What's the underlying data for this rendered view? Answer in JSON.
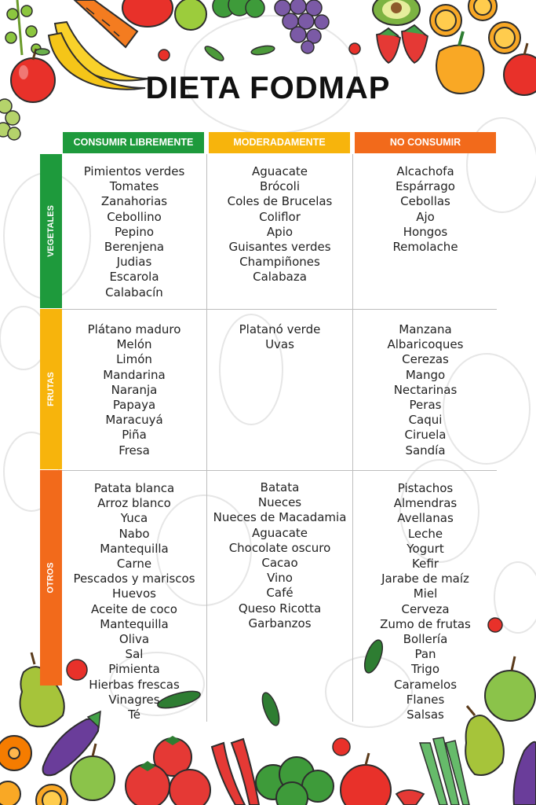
{
  "title": "DIETA FODMAP",
  "colors": {
    "green": "#1e9a3c",
    "yellow": "#f7b40c",
    "orange": "#f26a1b"
  },
  "columns": [
    {
      "label": "CONSUMIR LIBREMENTE",
      "color": "#1e9a3c"
    },
    {
      "label": "MODERADAMENTE",
      "color": "#f7b40c"
    },
    {
      "label": "NO CONSUMIR",
      "color": "#f26a1b"
    }
  ],
  "rows": [
    {
      "label": "VEGETALES",
      "cells": [
        [
          "Pimientos verdes",
          "Tomates",
          "Zanahorias",
          "Cebollino",
          "Pepino",
          "Berenjena",
          "Judias",
          "Escarola",
          "Calabacín"
        ],
        [
          "Aguacate",
          "Brócoli",
          "Coles de Brucelas",
          "Coliflor",
          "Apio",
          "Guisantes verdes",
          "Champiñones",
          "Calabaza"
        ],
        [
          "Alcachofa",
          "Espárrago",
          "Cebollas",
          "Ajo",
          "Hongos",
          "Remolache"
        ]
      ]
    },
    {
      "label": "FRUTAS",
      "cells": [
        [
          "Plátano maduro",
          "Melón",
          "Limón",
          "Mandarina",
          "Naranja",
          "Papaya",
          "Maracuyá",
          "Piña",
          "Fresa"
        ],
        [
          "Platanó verde",
          "Uvas"
        ],
        [
          "Manzana",
          "Albaricoques",
          "Cerezas",
          "Mango",
          "Nectarinas",
          "Peras",
          "Caqui",
          "Ciruela",
          "Sandía"
        ]
      ]
    },
    {
      "label": "OTROS",
      "cells": [
        [
          "Patata blanca",
          "Arroz blanco",
          "Yuca",
          "Nabo",
          "Mantequilla",
          "Carne",
          "Pescados y mariscos",
          "Huevos",
          "Aceite de coco",
          "Mantequilla",
          "Oliva",
          "Sal",
          "Pimienta",
          "Hierbas frescas",
          "Vinagres",
          "Té"
        ],
        [
          "Batata",
          "Nueces",
          "Nueces de Macadamia",
          "Aguacate",
          "Chocolate oscuro",
          "Cacao",
          "Vino",
          "Café",
          "Queso Ricotta",
          "Garbanzos"
        ],
        [
          "Pistachos",
          "Almendras",
          "Avellanas",
          "Leche",
          "Yogurt",
          "Kefir",
          "Jarabe de maíz",
          "Miel",
          "Cerveza",
          "Zumo de frutas",
          "Bollería",
          "Pan",
          "Trigo",
          "Caramelos",
          "Flanes",
          "Salsas"
        ]
      ]
    }
  ]
}
